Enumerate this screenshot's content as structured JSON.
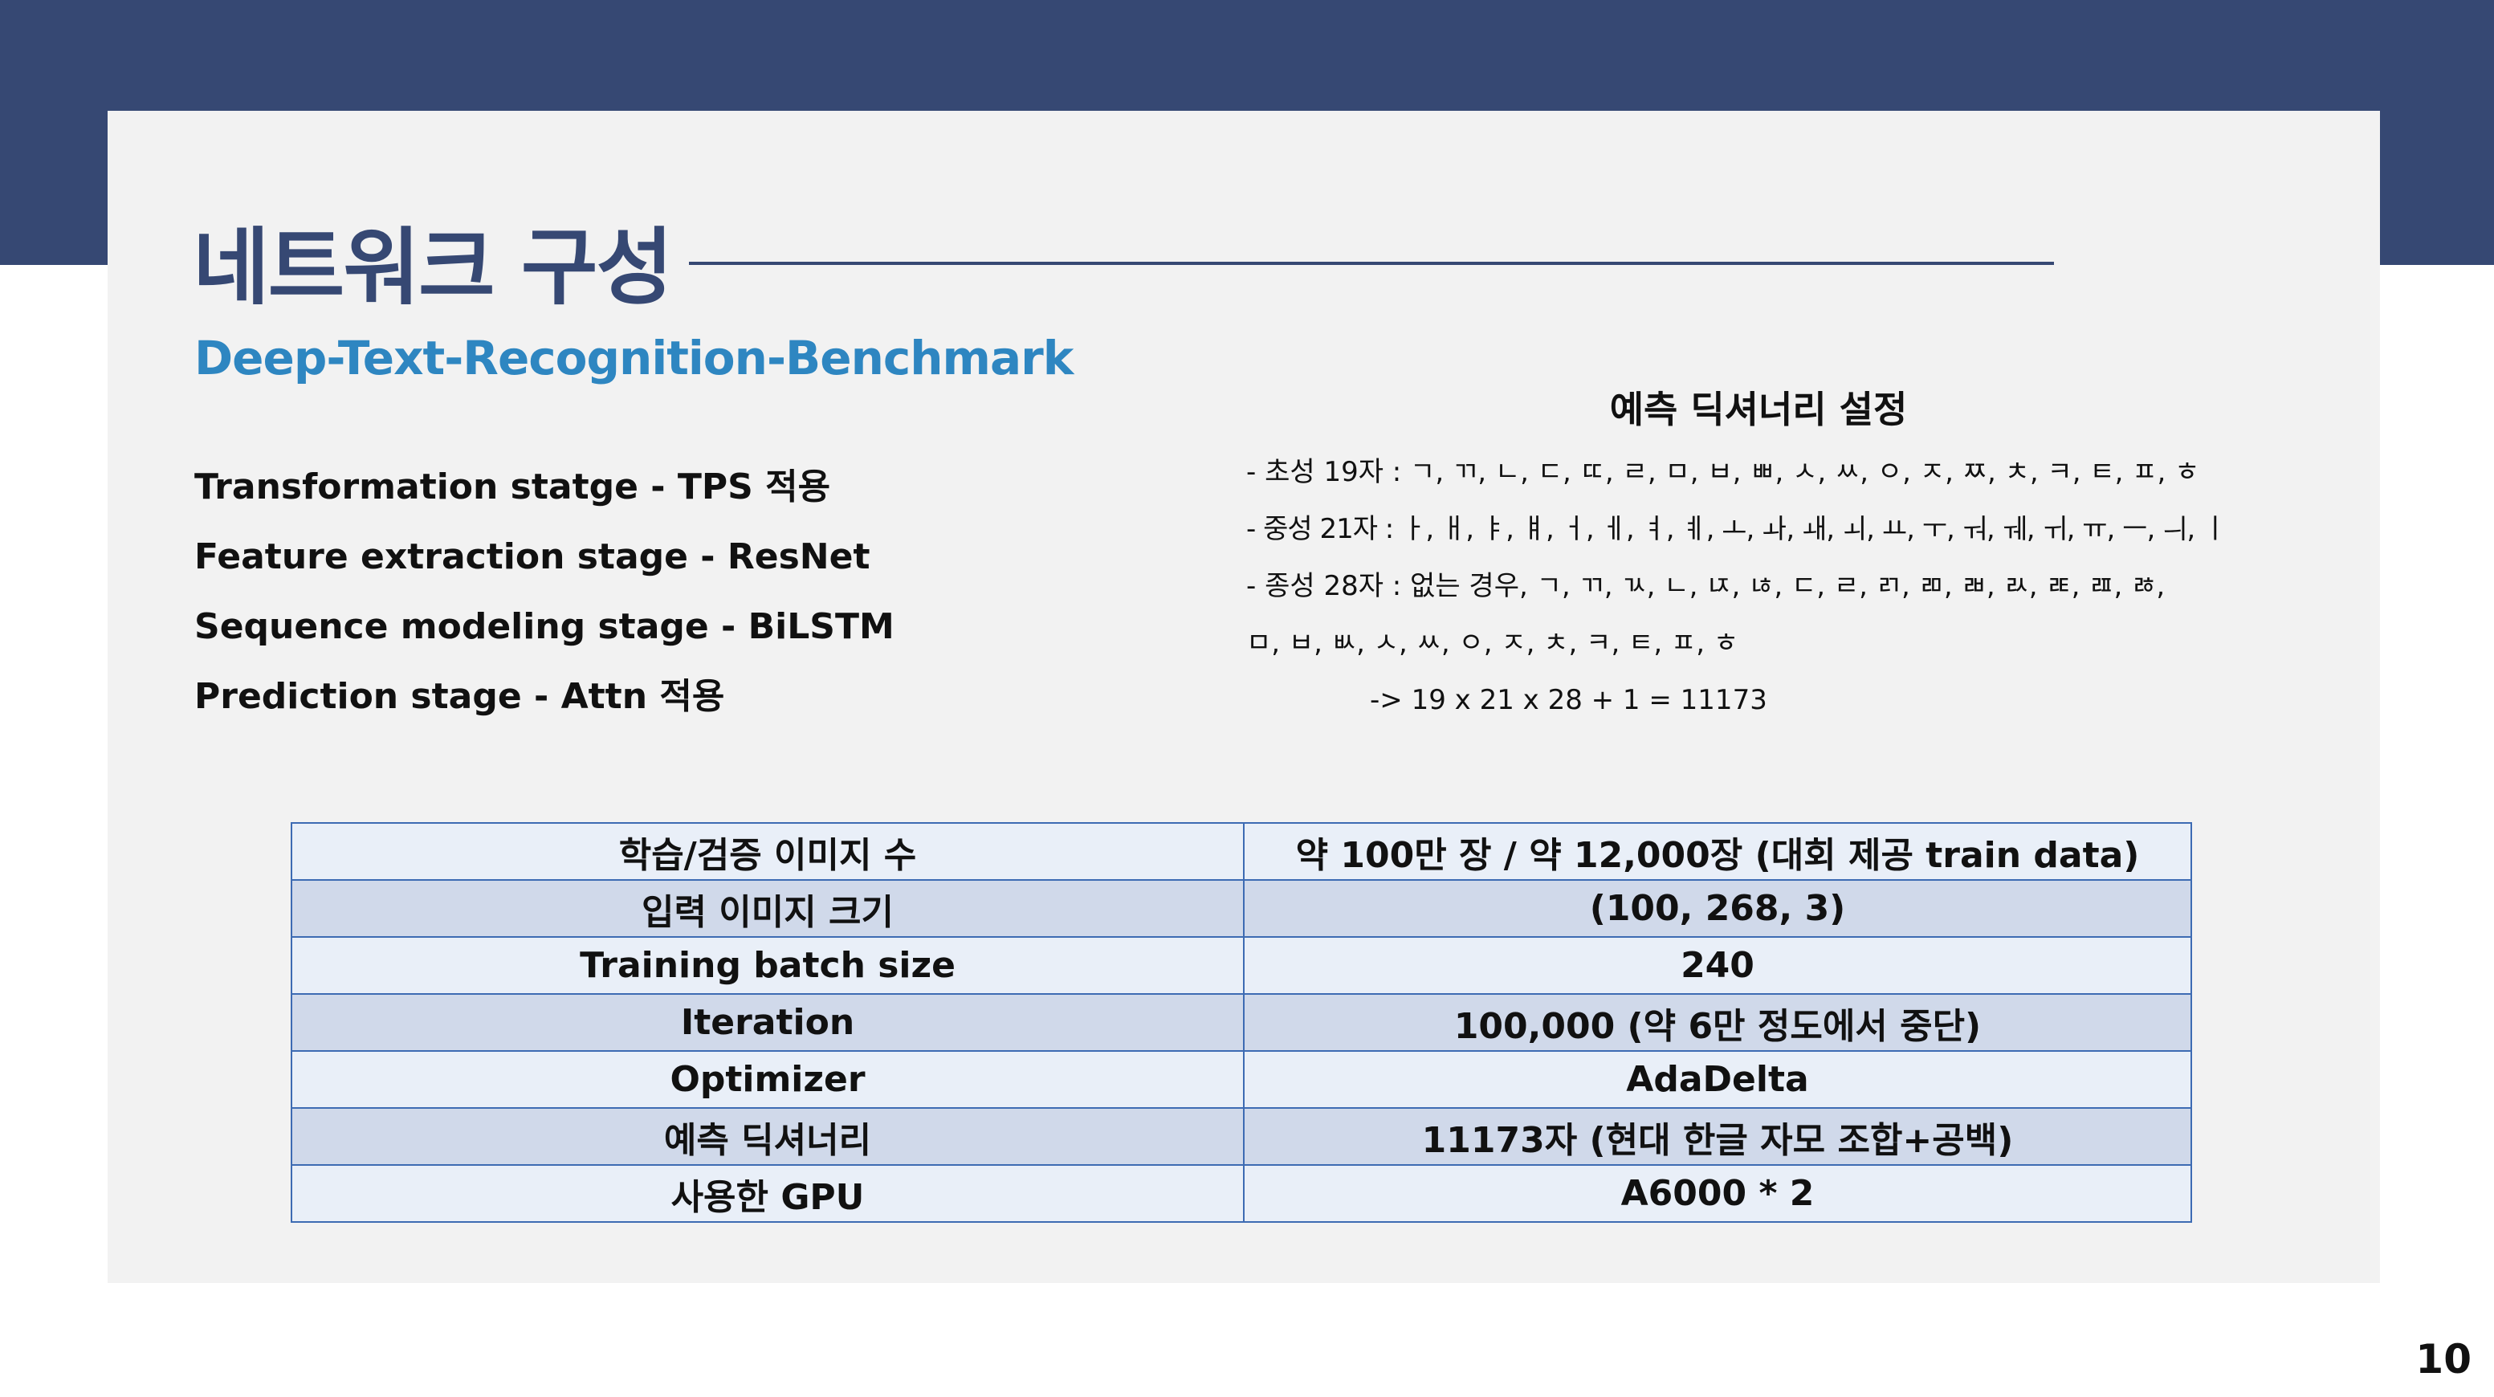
{
  "slide": {
    "title": "네트워크 구성",
    "subtitle": "Deep-Text-Recognition-Benchmark",
    "page_number": "10"
  },
  "stages": [
    "Transformation statge - TPS 적용",
    "Feature extraction stage - ResNet",
    "Sequence modeling stage - BiLSTM",
    "Prediction stage - Attn 적용"
  ],
  "dictionary": {
    "title": "예측 딕셔너리 설정",
    "lines": [
      "- 초성 19자 : ㄱ, ㄲ, ㄴ, ㄷ, ㄸ, ㄹ, ㅁ, ㅂ, ㅃ, ㅅ, ㅆ, ㅇ, ㅈ, ㅉ, ㅊ, ㅋ, ㅌ, ㅍ, ㅎ",
      "- 중성 21자 : ㅏ, ㅐ, ㅑ, ㅒ, ㅓ, ㅔ, ㅕ, ㅖ, ㅗ, ㅘ, ㅙ, ㅚ, ㅛ, ㅜ, ㅝ, ㅞ, ㅟ, ㅠ, ㅡ, ㅢ, ㅣ",
      "- 종성 28자 : 없는 경우, ㄱ, ㄲ, ㄳ, ㄴ, ㄵ, ㄶ, ㄷ, ㄹ, ㄺ, ㄻ, ㄼ, ㄽ, ㄾ, ㄿ, ㅀ,",
      "ㅁ, ㅂ, ㅄ, ㅅ, ㅆ, ㅇ, ㅈ, ㅊ, ㅋ, ㅌ, ㅍ, ㅎ",
      "-> 19 x 21 x 28 + 1 = 11173"
    ]
  },
  "table": {
    "rows": [
      [
        "학습/검증 이미지 수",
        "약 100만 장 / 약 12,000장 (대회 제공 train data)"
      ],
      [
        "입력 이미지 크기",
        "(100, 268, 3)"
      ],
      [
        "Training batch size",
        "240"
      ],
      [
        "Iteration",
        "100,000 (약 6만 정도에서 중단)"
      ],
      [
        "Optimizer",
        "AdaDelta"
      ],
      [
        "예측 딕셔너리",
        "11173자 (현대 한글 자모 조합+공백)"
      ],
      [
        "사용한 GPU",
        "A6000 * 2"
      ]
    ]
  },
  "colors": {
    "header_band": "#364873",
    "panel_background": "#f2f2f2",
    "subtitle": "#2e86c1",
    "table_border": "#3d6bb3",
    "table_row_light": "#e9eff8",
    "table_row_dark": "#d0d9ea"
  }
}
